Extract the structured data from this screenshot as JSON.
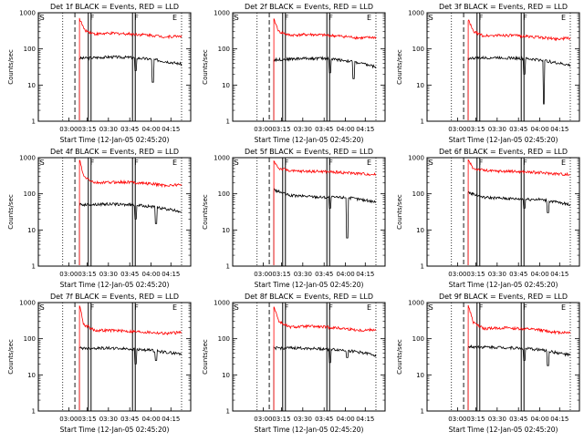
{
  "figure": {
    "background": "#ffffff",
    "colors": {
      "events": "#000000",
      "lld": "#ff0000",
      "axes": "#000000"
    }
  },
  "chart_data": [
    {
      "type": "line",
      "title": "Det 1f BLACK = Events, RED = LLD",
      "xlabel": "Start Time (12-Jan-05 02:45:20)",
      "ylabel": "Counts/sec",
      "yscale": "log",
      "ylim": [
        1,
        1000
      ],
      "yticks": [
        "1",
        "10",
        "100",
        "1000"
      ],
      "xticks": [
        "03:00",
        "03:15",
        "03:30",
        "03:45",
        "04:00",
        "04:15"
      ],
      "markers": [
        "S",
        "F",
        "F",
        "E"
      ],
      "series": [
        {
          "name": "Events",
          "color": "#000000",
          "profile": [
            [
              0,
              55
            ],
            [
              0.3,
              60
            ],
            [
              0.5,
              58
            ],
            [
              0.7,
              52
            ],
            [
              0.85,
              45
            ],
            [
              1,
              38
            ]
          ],
          "dips": [
            [
              0.55,
              25
            ],
            [
              0.72,
              12
            ]
          ]
        },
        {
          "name": "LLD",
          "color": "#ff0000",
          "profile": [
            [
              0,
              700
            ],
            [
              0.05,
              330
            ],
            [
              0.15,
              260
            ],
            [
              0.35,
              270
            ],
            [
              0.5,
              260
            ],
            [
              0.7,
              240
            ],
            [
              0.85,
              215
            ],
            [
              1,
              230
            ]
          ],
          "dips": []
        }
      ]
    },
    {
      "type": "line",
      "title": "Det 2f BLACK = Events, RED = LLD",
      "xlabel": "Start Time (12-Jan-05 02:45:20)",
      "ylabel": "Counts/sec",
      "yscale": "log",
      "ylim": [
        1,
        1000
      ],
      "yticks": [
        "1",
        "10",
        "100",
        "1000"
      ],
      "xticks": [
        "03:00",
        "03:15",
        "03:30",
        "03:45",
        "04:00",
        "04:15"
      ],
      "markers": [
        "S",
        "F",
        "F",
        "E"
      ],
      "series": [
        {
          "name": "Events",
          "color": "#000000",
          "profile": [
            [
              0,
              50
            ],
            [
              0.3,
              55
            ],
            [
              0.5,
              55
            ],
            [
              0.7,
              48
            ],
            [
              0.85,
              40
            ],
            [
              1,
              32
            ]
          ],
          "dips": [
            [
              0.55,
              22
            ],
            [
              0.78,
              15
            ]
          ]
        },
        {
          "name": "LLD",
          "color": "#ff0000",
          "profile": [
            [
              0,
              650
            ],
            [
              0.05,
              300
            ],
            [
              0.15,
              240
            ],
            [
              0.35,
              250
            ],
            [
              0.5,
              240
            ],
            [
              0.7,
              220
            ],
            [
              0.85,
              200
            ],
            [
              1,
              210
            ]
          ],
          "dips": []
        }
      ]
    },
    {
      "type": "line",
      "title": "Det 3f BLACK = Events, RED = LLD",
      "xlabel": "Start Time (12-Jan-05 02:45:20)",
      "ylabel": "Counts/sec",
      "yscale": "log",
      "ylim": [
        1,
        1000
      ],
      "yticks": [
        "1",
        "10",
        "100",
        "1000"
      ],
      "xticks": [
        "03:00",
        "03:15",
        "03:30",
        "03:45",
        "04:00",
        "04:15"
      ],
      "markers": [
        "S",
        "F",
        "F",
        "E"
      ],
      "series": [
        {
          "name": "Events",
          "color": "#000000",
          "profile": [
            [
              0,
              55
            ],
            [
              0.3,
              58
            ],
            [
              0.5,
              55
            ],
            [
              0.7,
              50
            ],
            [
              0.85,
              42
            ],
            [
              1,
              35
            ]
          ],
          "dips": [
            [
              0.55,
              20
            ],
            [
              0.74,
              3
            ]
          ]
        },
        {
          "name": "LLD",
          "color": "#ff0000",
          "profile": [
            [
              0,
              650
            ],
            [
              0.05,
              300
            ],
            [
              0.15,
              230
            ],
            [
              0.35,
              240
            ],
            [
              0.5,
              230
            ],
            [
              0.7,
              210
            ],
            [
              0.85,
              190
            ],
            [
              1,
              200
            ]
          ],
          "dips": []
        }
      ]
    },
    {
      "type": "line",
      "title": "Det 4f BLACK = Events, RED = LLD",
      "xlabel": "Start Time (12-Jan-05 02:45:20)",
      "ylabel": "Counts/sec",
      "yscale": "log",
      "ylim": [
        1,
        1000
      ],
      "yticks": [
        "1",
        "10",
        "100",
        "1000"
      ],
      "xticks": [
        "03:00",
        "03:15",
        "03:30",
        "03:45",
        "04:00",
        "04:15"
      ],
      "markers": [
        "S",
        "F",
        "F",
        "E"
      ],
      "series": [
        {
          "name": "Events",
          "color": "#000000",
          "profile": [
            [
              0,
              50
            ],
            [
              0.3,
              52
            ],
            [
              0.5,
              50
            ],
            [
              0.7,
              45
            ],
            [
              0.85,
              38
            ],
            [
              1,
              32
            ]
          ],
          "dips": [
            [
              0.55,
              20
            ],
            [
              0.75,
              15
            ]
          ]
        },
        {
          "name": "LLD",
          "color": "#ff0000",
          "profile": [
            [
              0,
              900
            ],
            [
              0.04,
              300
            ],
            [
              0.15,
              200
            ],
            [
              0.35,
              210
            ],
            [
              0.5,
              210
            ],
            [
              0.7,
              190
            ],
            [
              0.85,
              170
            ],
            [
              1,
              180
            ]
          ],
          "dips": []
        }
      ]
    },
    {
      "type": "line",
      "title": "Det 5f BLACK = Events, RED = LLD",
      "xlabel": "Start Time (12-Jan-05 02:45:20)",
      "ylabel": "Counts/sec",
      "yscale": "log",
      "ylim": [
        1,
        1000
      ],
      "yticks": [
        "1",
        "10",
        "100",
        "1000"
      ],
      "xticks": [
        "03:00",
        "03:15",
        "03:30",
        "03:45",
        "04:00",
        "04:15"
      ],
      "markers": [
        "S",
        "F",
        "F",
        "E"
      ],
      "series": [
        {
          "name": "Events",
          "color": "#000000",
          "profile": [
            [
              0,
              130
            ],
            [
              0.15,
              90
            ],
            [
              0.35,
              85
            ],
            [
              0.5,
              80
            ],
            [
              0.7,
              80
            ],
            [
              0.85,
              70
            ],
            [
              1,
              60
            ]
          ],
          "dips": [
            [
              0.55,
              40
            ],
            [
              0.72,
              6
            ]
          ]
        },
        {
          "name": "LLD",
          "color": "#ff0000",
          "profile": [
            [
              0,
              800
            ],
            [
              0.05,
              500
            ],
            [
              0.2,
              420
            ],
            [
              0.4,
              420
            ],
            [
              0.6,
              400
            ],
            [
              0.8,
              370
            ],
            [
              1,
              340
            ]
          ],
          "dips": []
        }
      ]
    },
    {
      "type": "line",
      "title": "Det 6f BLACK = Events, RED = LLD",
      "xlabel": "Start Time (12-Jan-05 02:45:20)",
      "ylabel": "Counts/sec",
      "yscale": "log",
      "ylim": [
        1,
        1000
      ],
      "yticks": [
        "1",
        "10",
        "100",
        "1000"
      ],
      "xticks": [
        "03:00",
        "03:15",
        "03:30",
        "03:45",
        "04:00",
        "04:15"
      ],
      "markers": [
        "S",
        "F",
        "F",
        "E"
      ],
      "series": [
        {
          "name": "Events",
          "color": "#000000",
          "profile": [
            [
              0,
              110
            ],
            [
              0.15,
              80
            ],
            [
              0.35,
              75
            ],
            [
              0.5,
              72
            ],
            [
              0.7,
              70
            ],
            [
              0.85,
              60
            ],
            [
              1,
              50
            ]
          ],
          "dips": [
            [
              0.55,
              40
            ],
            [
              0.78,
              30
            ]
          ]
        },
        {
          "name": "LLD",
          "color": "#ff0000",
          "profile": [
            [
              0,
              850
            ],
            [
              0.05,
              500
            ],
            [
              0.2,
              430
            ],
            [
              0.4,
              420
            ],
            [
              0.6,
              400
            ],
            [
              0.8,
              370
            ],
            [
              1,
              340
            ]
          ],
          "dips": []
        }
      ]
    },
    {
      "type": "line",
      "title": "Det 7f BLACK = Events, RED = LLD",
      "xlabel": "Start Time (12-Jan-05 02:45:20)",
      "ylabel": "Counts/sec",
      "yscale": "log",
      "ylim": [
        1,
        1000
      ],
      "yticks": [
        "1",
        "10",
        "100",
        "1000"
      ],
      "xticks": [
        "03:00",
        "03:15",
        "03:30",
        "03:45",
        "04:00",
        "04:15"
      ],
      "markers": [
        "S",
        "F",
        "F",
        "E"
      ],
      "series": [
        {
          "name": "Events",
          "color": "#000000",
          "profile": [
            [
              0,
              55
            ],
            [
              0.3,
              55
            ],
            [
              0.5,
              52
            ],
            [
              0.7,
              48
            ],
            [
              0.85,
              42
            ],
            [
              1,
              38
            ]
          ],
          "dips": [
            [
              0.55,
              20
            ],
            [
              0.75,
              25
            ]
          ]
        },
        {
          "name": "LLD",
          "color": "#ff0000",
          "profile": [
            [
              0,
              900
            ],
            [
              0.04,
              250
            ],
            [
              0.15,
              170
            ],
            [
              0.35,
              170
            ],
            [
              0.5,
              160
            ],
            [
              0.7,
              150
            ],
            [
              0.85,
              140
            ],
            [
              1,
              150
            ]
          ],
          "dips": []
        }
      ]
    },
    {
      "type": "line",
      "title": "Det 8f BLACK = Events, RED = LLD",
      "xlabel": "Start Time (12-Jan-05 02:45:20)",
      "ylabel": "Counts/sec",
      "yscale": "log",
      "ylim": [
        1,
        1000
      ],
      "yticks": [
        "1",
        "10",
        "100",
        "1000"
      ],
      "xticks": [
        "03:00",
        "03:15",
        "03:30",
        "03:45",
        "04:00",
        "04:15"
      ],
      "markers": [
        "S",
        "F",
        "F",
        "E"
      ],
      "series": [
        {
          "name": "Events",
          "color": "#000000",
          "profile": [
            [
              0,
              55
            ],
            [
              0.3,
              55
            ],
            [
              0.5,
              52
            ],
            [
              0.7,
              48
            ],
            [
              0.85,
              42
            ],
            [
              1,
              35
            ]
          ],
          "dips": [
            [
              0.55,
              22
            ],
            [
              0.72,
              30
            ]
          ]
        },
        {
          "name": "LLD",
          "color": "#ff0000",
          "profile": [
            [
              0,
              800
            ],
            [
              0.05,
              300
            ],
            [
              0.15,
              210
            ],
            [
              0.35,
              220
            ],
            [
              0.5,
              210
            ],
            [
              0.7,
              190
            ],
            [
              0.85,
              170
            ],
            [
              1,
              180
            ]
          ],
          "dips": []
        }
      ]
    },
    {
      "type": "line",
      "title": "Det 9f BLACK = Events, RED = LLD",
      "xlabel": "Start Time (12-Jan-05 02:45:20)",
      "ylabel": "Counts/sec",
      "yscale": "log",
      "ylim": [
        1,
        1000
      ],
      "yticks": [
        "1",
        "10",
        "100",
        "1000"
      ],
      "xticks": [
        "03:00",
        "03:15",
        "03:30",
        "03:45",
        "04:00",
        "04:15"
      ],
      "markers": [
        "S",
        "F",
        "F",
        "E"
      ],
      "series": [
        {
          "name": "Events",
          "color": "#000000",
          "profile": [
            [
              0,
              60
            ],
            [
              0.3,
              58
            ],
            [
              0.5,
              55
            ],
            [
              0.7,
              50
            ],
            [
              0.85,
              42
            ],
            [
              1,
              35
            ]
          ],
          "dips": [
            [
              0.55,
              25
            ],
            [
              0.78,
              18
            ]
          ]
        },
        {
          "name": "LLD",
          "color": "#ff0000",
          "profile": [
            [
              0,
              850
            ],
            [
              0.05,
              280
            ],
            [
              0.15,
              190
            ],
            [
              0.35,
              200
            ],
            [
              0.5,
              190
            ],
            [
              0.7,
              175
            ],
            [
              0.85,
              150
            ],
            [
              1,
              150
            ]
          ],
          "dips": []
        }
      ]
    }
  ]
}
